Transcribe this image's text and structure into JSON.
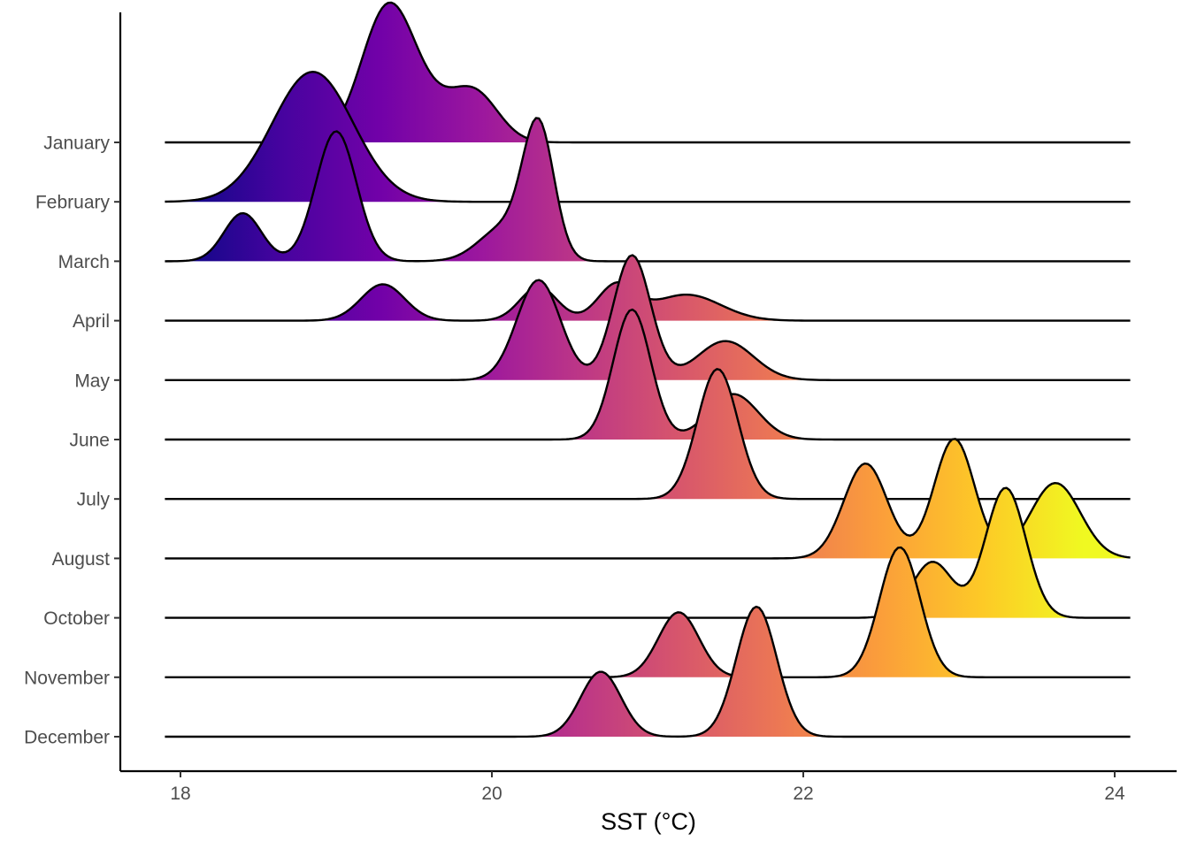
{
  "chart_data": {
    "type": "ridgeline",
    "xlabel": "SST (°C)",
    "ylabel": "",
    "xlim": [
      17.9,
      24.1
    ],
    "x_ticks": [
      18,
      20,
      22,
      24
    ],
    "x_tick_labels": [
      "18",
      "20",
      "22",
      "24"
    ],
    "colormap": "plasma",
    "color_range": [
      18.0,
      23.8
    ],
    "colormap_stops": [
      "#0d0887",
      "#46039f",
      "#7201a8",
      "#9c179e",
      "#bd3786",
      "#d8576b",
      "#ed7953",
      "#fb9f3a",
      "#fdca26",
      "#f0f921"
    ],
    "grid": false,
    "legend": "none",
    "categories": [
      "January",
      "February",
      "March",
      "April",
      "May",
      "June",
      "July",
      "August",
      "October",
      "November",
      "December"
    ],
    "series": [
      {
        "name": "January",
        "peaks": [
          [
            19.33,
            1.0,
            0.17
          ],
          [
            19.9,
            0.32,
            0.15
          ],
          [
            19.63,
            0.22,
            0.2
          ]
        ]
      },
      {
        "name": "February",
        "peaks": [
          [
            18.85,
            1.0,
            0.26
          ]
        ]
      },
      {
        "name": "March",
        "peaks": [
          [
            18.4,
            0.37,
            0.12
          ],
          [
            19.0,
            1.0,
            0.13
          ],
          [
            20.08,
            0.26,
            0.16
          ],
          [
            20.3,
            1.0,
            0.1
          ]
        ]
      },
      {
        "name": "April",
        "peaks": [
          [
            19.3,
            0.28,
            0.14
          ],
          [
            20.3,
            0.26,
            0.12
          ],
          [
            20.8,
            0.27,
            0.12
          ],
          [
            21.25,
            0.2,
            0.22
          ]
        ]
      },
      {
        "name": "May",
        "peaks": [
          [
            20.3,
            0.77,
            0.14
          ],
          [
            20.9,
            0.96,
            0.12
          ],
          [
            21.5,
            0.3,
            0.18
          ]
        ]
      },
      {
        "name": "June",
        "peaks": [
          [
            20.9,
            1.0,
            0.12
          ],
          [
            21.55,
            0.35,
            0.16
          ]
        ]
      },
      {
        "name": "July",
        "peaks": [
          [
            21.45,
            1.0,
            0.13
          ]
        ]
      },
      {
        "name": "August",
        "peaks": [
          [
            22.4,
            0.73,
            0.14
          ],
          [
            22.97,
            0.92,
            0.13
          ],
          [
            23.62,
            0.58,
            0.16
          ]
        ]
      },
      {
        "name": "October",
        "peaks": [
          [
            22.83,
            0.43,
            0.13
          ],
          [
            23.3,
            1.0,
            0.13
          ]
        ]
      },
      {
        "name": "November",
        "peaks": [
          [
            21.2,
            0.5,
            0.13
          ],
          [
            22.62,
            1.0,
            0.13
          ]
        ]
      },
      {
        "name": "December",
        "peaks": [
          [
            20.7,
            0.5,
            0.13
          ],
          [
            21.7,
            1.0,
            0.13
          ]
        ]
      }
    ]
  }
}
